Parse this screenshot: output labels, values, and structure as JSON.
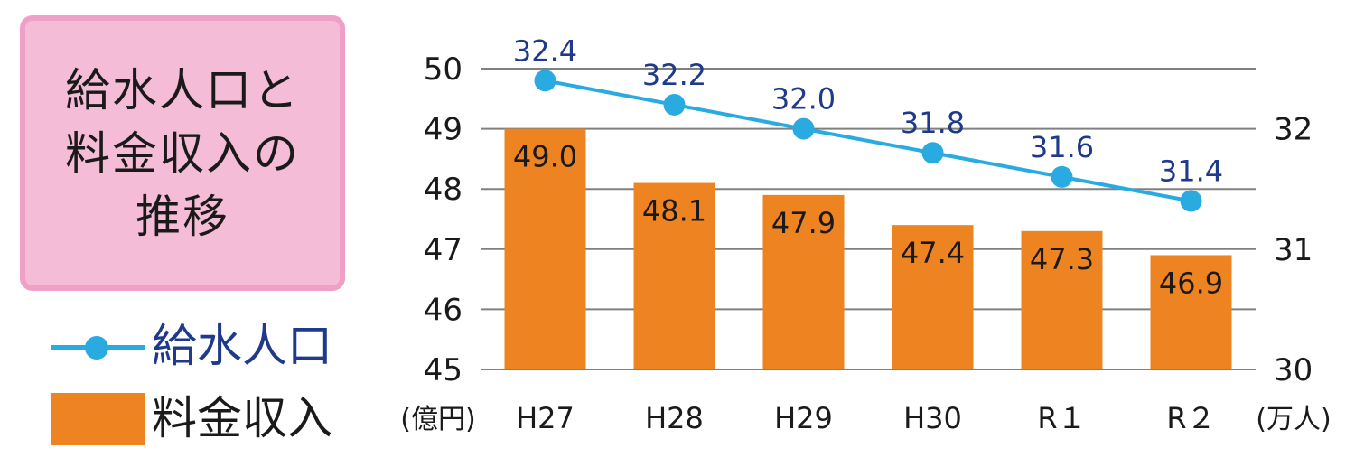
{
  "title": "給水人口と\n料金収入の\n推移",
  "legend": [
    {
      "label": "給水人口",
      "kind": "line",
      "color": "#29abe2",
      "text_color": "#1f3a8a"
    },
    {
      "label": "料金収入",
      "kind": "bar",
      "color": "#ee8421",
      "text_color": "#1a1a1a"
    }
  ],
  "colors": {
    "bar": "#ee8421",
    "line": "#29abe2",
    "line_label": "#1f3a8a",
    "grid": "#808080"
  },
  "chart_data": {
    "type": "bar",
    "categories": [
      "H27",
      "H28",
      "H29",
      "H30",
      "R１",
      "R２"
    ],
    "series": [
      {
        "name": "料金収入",
        "type": "bar",
        "axis": "left",
        "values": [
          49.0,
          48.1,
          47.9,
          47.4,
          47.3,
          46.9
        ],
        "labels": [
          "49.0",
          "48.1",
          "47.9",
          "47.4",
          "47.3",
          "46.9"
        ]
      },
      {
        "name": "給水人口",
        "type": "line",
        "axis": "right",
        "values": [
          32.4,
          32.2,
          32.0,
          31.8,
          31.6,
          31.4
        ],
        "labels": [
          "32.4",
          "32.2",
          "32.0",
          "31.8",
          "31.6",
          "31.4"
        ]
      }
    ],
    "y_left": {
      "lim": [
        45,
        50
      ],
      "ticks": [
        "45",
        "46",
        "47",
        "48",
        "49",
        "50"
      ],
      "unit": "(億円)"
    },
    "y_right": {
      "lim": [
        30,
        32.5
      ],
      "ticks": [
        "30",
        "31",
        "32"
      ],
      "unit": "(万人)"
    },
    "grid": true,
    "legend_position": "left"
  }
}
